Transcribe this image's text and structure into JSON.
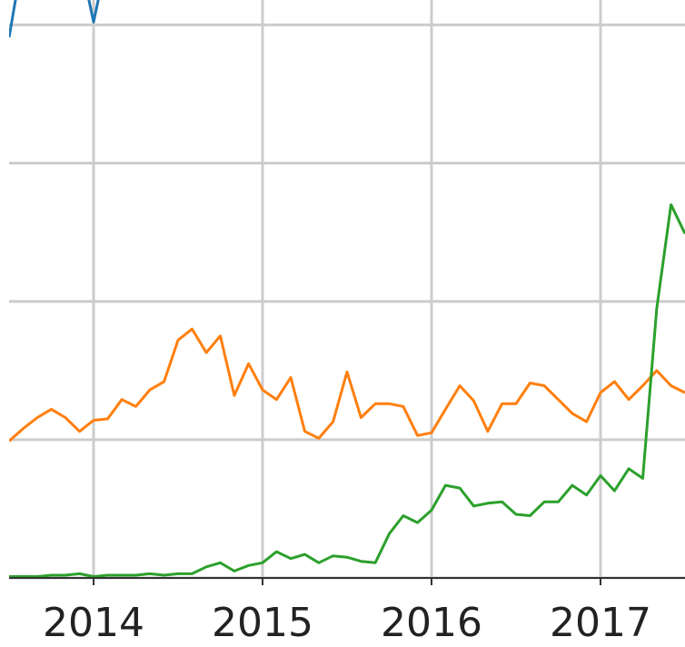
{
  "chart_data": {
    "type": "line",
    "x": [
      2013.5,
      2013.583,
      2013.667,
      2013.75,
      2013.833,
      2013.917,
      2014,
      2014.083,
      2014.167,
      2014.25,
      2014.333,
      2014.417,
      2014.5,
      2014.583,
      2014.667,
      2014.75,
      2014.833,
      2014.917,
      2015,
      2015.083,
      2015.167,
      2015.25,
      2015.333,
      2015.417,
      2015.5,
      2015.583,
      2015.667,
      2015.75,
      2015.833,
      2015.917,
      2016,
      2016.083,
      2016.167,
      2016.25,
      2016.333,
      2016.417,
      2016.5,
      2016.583,
      2016.667,
      2016.75,
      2016.833,
      2016.917,
      2017,
      2017.083,
      2017.167,
      2017.25,
      2017.333,
      2017.417,
      2017.5
    ],
    "series": [
      {
        "color": "#1f77b4",
        "values": [
          3.91,
          4.5,
          4.6,
          4.6,
          4.6,
          4.5,
          4.02,
          4.5,
          null,
          null,
          null,
          null,
          null,
          null,
          null,
          null,
          null,
          null,
          null,
          null,
          null,
          null,
          null,
          null,
          null,
          null,
          null,
          null,
          null,
          null,
          null,
          null,
          null,
          null,
          null,
          null,
          null,
          null,
          null,
          null,
          null,
          null,
          null,
          null,
          null,
          null,
          null,
          null,
          null
        ]
      },
      {
        "color": "#ff7f0e",
        "values": [
          0.99,
          1.08,
          1.16,
          1.22,
          1.16,
          1.06,
          1.14,
          1.15,
          1.29,
          1.24,
          1.36,
          1.42,
          1.72,
          1.8,
          1.63,
          1.75,
          1.32,
          1.55,
          1.36,
          1.29,
          1.45,
          1.06,
          1.01,
          1.13,
          1.49,
          1.16,
          1.26,
          1.26,
          1.24,
          1.03,
          1.05,
          1.22,
          1.39,
          1.28,
          1.06,
          1.26,
          1.26,
          1.41,
          1.39,
          1.29,
          1.19,
          1.13,
          1.34,
          1.42,
          1.29,
          1.39,
          1.5,
          1.39,
          1.34
        ]
      },
      {
        "color": "#2ca02c",
        "values": [
          0.01,
          0.01,
          0.01,
          0.02,
          0.02,
          0.03,
          0.01,
          0.02,
          0.02,
          0.02,
          0.03,
          0.02,
          0.03,
          0.03,
          0.08,
          0.11,
          0.05,
          0.09,
          0.11,
          0.19,
          0.14,
          0.17,
          0.11,
          0.16,
          0.15,
          0.12,
          0.11,
          0.32,
          0.45,
          0.4,
          0.49,
          0.67,
          0.65,
          0.52,
          0.54,
          0.55,
          0.46,
          0.45,
          0.55,
          0.55,
          0.67,
          0.6,
          0.74,
          0.63,
          0.79,
          0.72,
          1.95,
          2.7,
          2.49
        ]
      }
    ],
    "xlim": [
      2013.5,
      2017.5
    ],
    "xticks": [
      2014,
      2015,
      2016,
      2017
    ],
    "ylim": [
      0,
      4.18
    ],
    "yticks": [
      0,
      1,
      2,
      3,
      4
    ],
    "grid": true
  }
}
